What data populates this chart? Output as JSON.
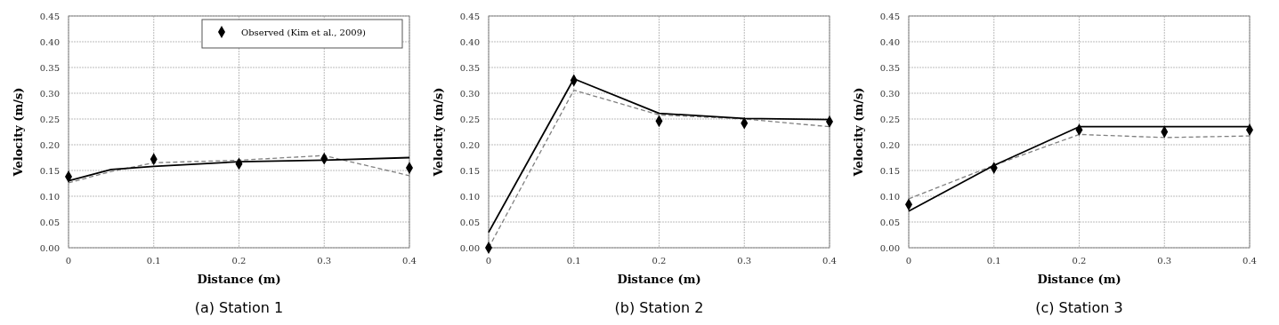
{
  "chart_data": [
    {
      "type": "line",
      "title": "(a) Station 1",
      "xlabel": "Distance (m)",
      "ylabel": "Velocity (m/s)",
      "xlim": [
        0,
        0.4
      ],
      "xticks": [
        0,
        0.1,
        0.2,
        0.3,
        0.4
      ],
      "ylim": [
        0,
        0.45
      ],
      "yticks": [
        {
          "value": 0,
          "label": "0.00"
        },
        {
          "value": 0.05,
          "label": "0.05"
        },
        {
          "value": 0.1,
          "label": "0.10"
        },
        {
          "value": 0.15,
          "label": "0.15"
        },
        {
          "value": 0.2,
          "label": "0.20"
        },
        {
          "value": 0.25,
          "label": "0.25"
        },
        {
          "value": 0.3,
          "label": "0.30"
        },
        {
          "value": 0.35,
          "label": "0.35"
        },
        {
          "value": 0.4,
          "label": "0.40"
        },
        {
          "value": 0.45,
          "label": "0.45"
        }
      ],
      "grid": true,
      "legend": "top right",
      "series": [
        {
          "name": "Observed (Kim et al., 2009)",
          "type": "scatter",
          "marker": "diamond",
          "color": "#000000",
          "x": [
            0,
            0.1,
            0.2,
            0.3,
            0.4
          ],
          "values": [
            0.138,
            0.172,
            0.163,
            0.173,
            0.155
          ]
        },
        {
          "line_style": "dashed",
          "color": "#808080",
          "x": [
            0,
            0.05,
            0.1,
            0.2,
            0.3,
            0.4
          ],
          "values": [
            0.126,
            0.148,
            0.165,
            0.17,
            0.179,
            0.14
          ]
        },
        {
          "line_style": "solid",
          "color": "#000000",
          "x": [
            0,
            0.05,
            0.1,
            0.2,
            0.3,
            0.4
          ],
          "values": [
            0.13,
            0.152,
            0.158,
            0.167,
            0.17,
            0.175
          ]
        }
      ]
    },
    {
      "type": "line",
      "title": "(b) Station 2",
      "xlabel": "Distance (m)",
      "ylabel": "Velocity (m/s)",
      "xlim": [
        0,
        0.4
      ],
      "xticks": [
        0,
        0.1,
        0.2,
        0.3,
        0.4
      ],
      "ylim": [
        0,
        0.45
      ],
      "yticks": [
        {
          "value": 0,
          "label": "0.00"
        },
        {
          "value": 0.05,
          "label": "0.05"
        },
        {
          "value": 0.1,
          "label": "0.10"
        },
        {
          "value": 0.15,
          "label": "0.15"
        },
        {
          "value": 0.2,
          "label": "0.20"
        },
        {
          "value": 0.25,
          "label": "0.25"
        },
        {
          "value": 0.3,
          "label": "0.30"
        },
        {
          "value": 0.35,
          "label": "0.35"
        },
        {
          "value": 0.4,
          "label": "0.40"
        },
        {
          "value": 0.45,
          "label": "0.45"
        }
      ],
      "grid": true,
      "series": [
        {
          "type": "scatter",
          "marker": "diamond",
          "color": "#000000",
          "x": [
            0,
            0.1,
            0.2,
            0.3,
            0.4
          ],
          "values": [
            0,
            0.325,
            0.246,
            0.242,
            0.245
          ]
        },
        {
          "line_style": "dashed",
          "color": "#808080",
          "x": [
            0,
            0.1,
            0.2,
            0.3,
            0.4
          ],
          "values": [
            0,
            0.306,
            0.258,
            0.25,
            0.235
          ]
        },
        {
          "line_style": "solid",
          "color": "#000000",
          "x": [
            0,
            0.1,
            0.2,
            0.3,
            0.4
          ],
          "values": [
            0.03,
            0.328,
            0.261,
            0.251,
            0.249
          ]
        }
      ]
    },
    {
      "type": "line",
      "title": "(c) Station 3",
      "xlabel": "Distance (m)",
      "ylabel": "Velocity (m/s)",
      "xlim": [
        0,
        0.4
      ],
      "xticks": [
        0,
        0.1,
        0.2,
        0.3,
        0.4
      ],
      "ylim": [
        0,
        0.45
      ],
      "yticks": [
        {
          "value": 0,
          "label": "0.00"
        },
        {
          "value": 0.05,
          "label": "0.05"
        },
        {
          "value": 0.1,
          "label": "0.10"
        },
        {
          "value": 0.15,
          "label": "0.15"
        },
        {
          "value": 0.2,
          "label": "0.20"
        },
        {
          "value": 0.25,
          "label": "0.25"
        },
        {
          "value": 0.3,
          "label": "0.30"
        },
        {
          "value": 0.35,
          "label": "0.35"
        },
        {
          "value": 0.4,
          "label": "0.40"
        },
        {
          "value": 0.45,
          "label": "0.45"
        }
      ],
      "grid": true,
      "series": [
        {
          "type": "scatter",
          "marker": "diamond",
          "color": "#000000",
          "x": [
            0,
            0.1,
            0.2,
            0.3,
            0.4
          ],
          "values": [
            0.084,
            0.155,
            0.229,
            0.225,
            0.229
          ]
        },
        {
          "line_style": "dashed",
          "color": "#808080",
          "x": [
            0,
            0.1,
            0.2,
            0.3,
            0.4
          ],
          "values": [
            0.095,
            0.16,
            0.22,
            0.214,
            0.217
          ]
        },
        {
          "line_style": "solid",
          "color": "#000000",
          "x": [
            0,
            0.1,
            0.2,
            0.3,
            0.4
          ],
          "values": [
            0.071,
            0.16,
            0.235,
            0.235,
            0.235
          ]
        }
      ]
    }
  ]
}
